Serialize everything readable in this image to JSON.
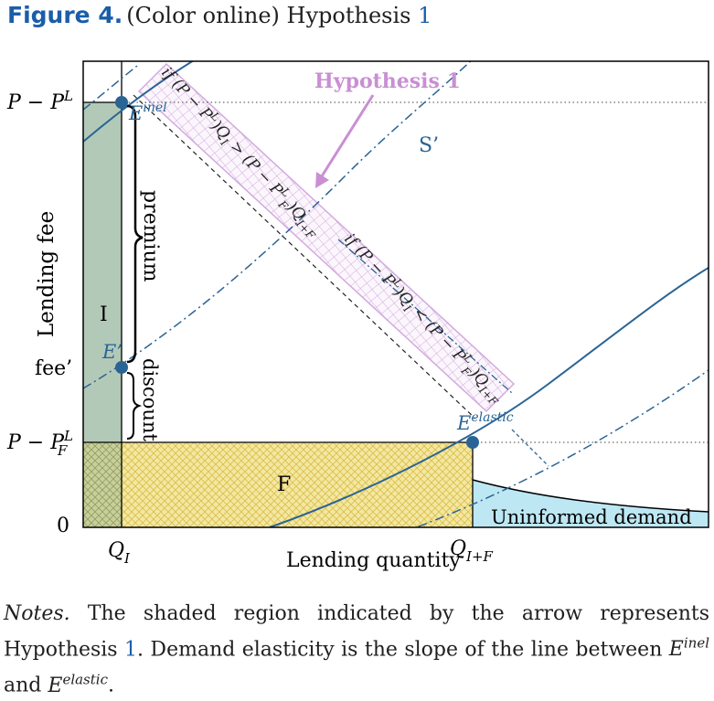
{
  "figure": {
    "label": "Figure 4.",
    "caption_prefix": "(Color online) Hypothesis",
    "caption_ref": "1"
  },
  "diagram": {
    "y_axis_title": "Lending fee",
    "x_axis_title": "Lending quantity",
    "y_ticks": {
      "top": {
        "base": "P − P",
        "sup": "L"
      },
      "mid": "fee’",
      "lower": {
        "base": "P − P",
        "sup": "L",
        "sub": "F"
      },
      "zero": "0"
    },
    "x_ticks": {
      "qi": {
        "base": "Q",
        "sub": "I"
      },
      "qif": {
        "base": "Q",
        "sub": "I+F"
      }
    },
    "region_labels": {
      "informed": "I",
      "friction": "F",
      "uninformed": "Uninformed demand"
    },
    "curve_label": "S’",
    "points": {
      "e_inel": {
        "base": "E",
        "sup": "inel"
      },
      "e_prime": "E’",
      "e_elastic": {
        "base": "E",
        "sup": "elastic"
      }
    },
    "brace_labels": {
      "premium": "premium",
      "discount": "discount"
    },
    "hypothesis_label": "Hypothesis 1",
    "band_text_upper": {
      "a": "if (P − P",
      "a_sup": "L",
      "b": ")Q",
      "b_sub": "I",
      "c": " > (P − P",
      "c_sup": "L",
      "c_sub": "F",
      "d": ")Q",
      "d_sub": "I+F"
    },
    "band_text_lower": {
      "a": "if (P − P",
      "a_sup": "L",
      "b": ")Q",
      "b_sub": "I",
      "c": " < (P − P",
      "c_sup": "L",
      "c_sub": "F",
      "d": ")Q",
      "d_sub": "I+F"
    },
    "colors": {
      "informed_fill": "#b3c9b8",
      "friction_fill": "#f4e7a3",
      "friction_hatch": "#d9bf45",
      "uninformed_fill": "#bde7f3",
      "hypothesis_band": "#ddc3e6",
      "hypothesis_text": "#c98fd3",
      "curve_blue": "#2a6494"
    }
  },
  "notes": {
    "label": "Notes.",
    "text_1": " The shaded region indicated by the arrow represents Hypothesis ",
    "ref": "1",
    "text_2": ". Demand elasticity is the slope of the line between ",
    "e1_base": "E",
    "e1_sup": "inel",
    "and": " and ",
    "e2_base": "E",
    "e2_sup": "elastic",
    "end": "."
  }
}
